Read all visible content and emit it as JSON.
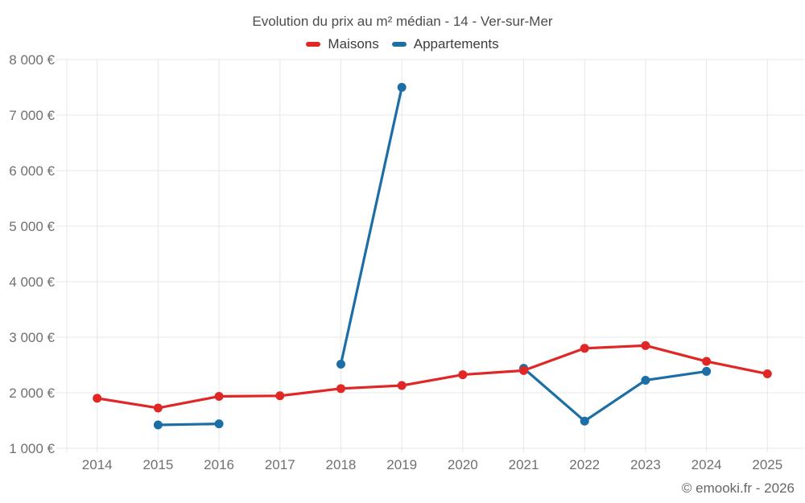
{
  "chart_data": {
    "type": "line",
    "title": "Evolution du prix au m² médian - 14 - Ver-sur-Mer",
    "categories": [
      "2014",
      "2015",
      "2016",
      "2017",
      "2018",
      "2019",
      "2020",
      "2021",
      "2022",
      "2023",
      "2024",
      "2025"
    ],
    "series": [
      {
        "name": "Maisons",
        "color": "#e12626",
        "values": [
          1900,
          1725,
          1935,
          1945,
          2075,
          2130,
          2325,
          2400,
          2800,
          2850,
          2565,
          2340
        ]
      },
      {
        "name": "Appartements",
        "color": "#1b6ea6",
        "values": [
          null,
          1420,
          1440,
          null,
          2515,
          7500,
          null,
          2440,
          1490,
          2225,
          2385,
          null
        ]
      }
    ],
    "xlabel": "",
    "ylabel": "",
    "ylim": [
      1000,
      8000
    ],
    "yticks": [
      1000,
      2000,
      3000,
      4000,
      5000,
      6000,
      7000,
      8000
    ],
    "ytick_labels": [
      "1 000 €",
      "2 000 €",
      "3 000 €",
      "4 000 €",
      "5 000 €",
      "6 000 €",
      "7 000 €",
      "8 000 €"
    ],
    "grid": true,
    "legend_position": "top-center"
  },
  "footer": {
    "copyright": "© emooki.fr - 2026"
  },
  "colors": {
    "background": "#ffffff",
    "grid": "#e7e7e7",
    "tick_label": "#707070",
    "title_text": "#4c4c4c",
    "legend_text": "#3d3d3d",
    "copyright_text": "#666666",
    "maisons_series": "#e12626",
    "appartements_series": "#1b6ea6"
  }
}
